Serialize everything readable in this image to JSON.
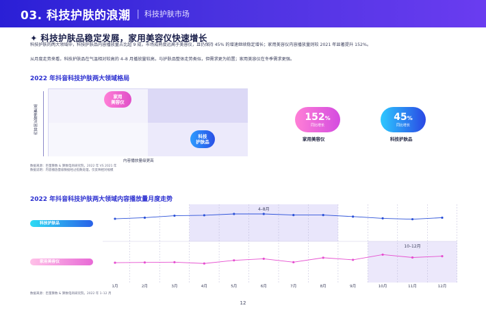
{
  "header": {
    "title": "03. 科技护肤的浪潮",
    "separator": "|",
    "subtitle": "科技护肤市场"
  },
  "headline": "✦ 科技护肤品稳定发展，家用美容仪快速增长",
  "paragraphs": [
    "科技护肤的两大领域中，科技护肤品内容播放量占比超 9 成，市场成熟度远高于美容仪，且仍保持 45% 的增速继续稳定增长；家用美容仪内容播放量则较 2021 年显著提升 152%。",
    "从月度走势来看，科技护肤品在气温相对较高的 4–8 月播放量较高，与护肤品整体走势类似，但需求更为前置；家用美容仪在冬季需求更强。"
  ],
  "section1": {
    "title": "2022 年抖音科技护肤两大领域格局",
    "y_axis": "内容同比增速更高",
    "x_axis": "内容播放量级更高",
    "bubble_home": "家用\n美容仪",
    "bubble_tech": "科技\n护肤品",
    "stats": [
      {
        "value": "152",
        "unit": "%",
        "caption": "同比增长",
        "label": "家用美容仪",
        "color": "#e04fc8"
      },
      {
        "value": "45",
        "unit": "%",
        "caption": "同比增长",
        "label": "科技护肤品",
        "color": "#2a48e4"
      }
    ],
    "notes": [
      "数据来源：巨量算数 & 算数电商研究院，2022 年 VS 2021 年",
      "数据说明：内容播放量级数据经过指数处理，仅反映相对规模"
    ]
  },
  "section2": {
    "title": "2022 年抖音科技护肤两大领域内容播放量月度走势",
    "note": "数据来源：巨量算数 & 算数电商研究院，2022 年 1–12 月"
  },
  "chart_data": {
    "type": "line",
    "categories": [
      "1月",
      "2月",
      "3月",
      "4月",
      "5月",
      "6月",
      "7月",
      "8月",
      "9月",
      "10月",
      "11月",
      "12月"
    ],
    "series": [
      {
        "name": "科技护肤品",
        "values": [
          0.78,
          0.83,
          0.92,
          0.94,
          1.0,
          1.0,
          0.95,
          0.95,
          0.88,
          0.8,
          0.76,
          0.83
        ],
        "color": "#2a50d8"
      },
      {
        "name": "家用美容仪",
        "values": [
          0.55,
          0.56,
          0.57,
          0.52,
          0.64,
          0.7,
          0.57,
          0.74,
          0.66,
          0.86,
          0.75,
          0.8
        ],
        "color": "#e64fd0"
      }
    ],
    "highlights": [
      {
        "label": "4–8月",
        "from": "4月",
        "to": "8月",
        "series": "科技护肤品"
      },
      {
        "label": "10–12月",
        "from": "10月",
        "to": "12月",
        "series": "家用美容仪"
      }
    ]
  },
  "page_number": "12"
}
